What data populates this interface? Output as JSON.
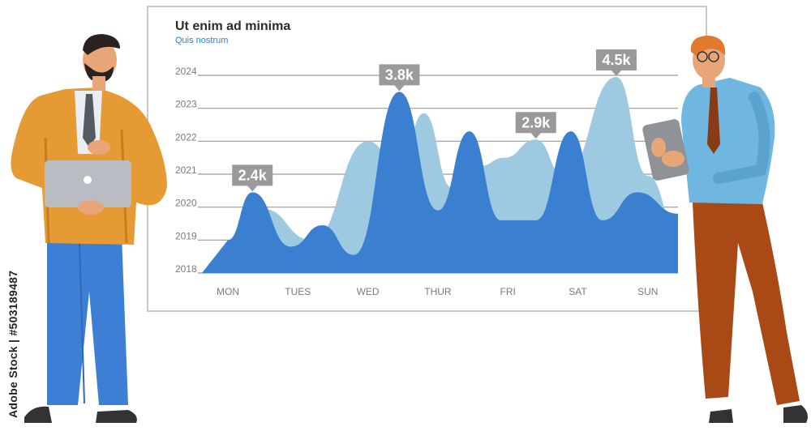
{
  "chart_data": {
    "type": "area",
    "title": "Ut enim ad minima",
    "subtitle": "Quis nostrum",
    "x": [
      "MON",
      "TUES",
      "WED",
      "THUR",
      "FRI",
      "SAT",
      "SUN"
    ],
    "y_ticks": [
      "2018",
      "2019",
      "2020",
      "2021",
      "2022",
      "2023",
      "2024"
    ],
    "ylim": [
      2018,
      2024
    ],
    "grid": true,
    "series": [
      {
        "color": "#9ecae1",
        "points": [
          [
            0.0,
            2018.9
          ],
          [
            0.5,
            2019.95
          ],
          [
            1.2,
            2019.0
          ],
          [
            2.0,
            2022.0
          ],
          [
            2.45,
            2021.2
          ],
          [
            2.8,
            2022.85
          ],
          [
            3.2,
            2020.6
          ],
          [
            3.6,
            2021.25
          ],
          [
            3.95,
            2021.5
          ],
          [
            4.4,
            2022.05
          ],
          [
            4.8,
            2020.95
          ],
          [
            5.55,
            2023.95
          ],
          [
            6.0,
            2020.95
          ],
          [
            6.5,
            2019.3
          ]
        ]
      },
      {
        "color": "#3a7fd0",
        "points": [
          [
            0.0,
            2019.0
          ],
          [
            0.35,
            2020.45
          ],
          [
            0.9,
            2018.8
          ],
          [
            1.35,
            2019.45
          ],
          [
            1.8,
            2018.55
          ],
          [
            2.45,
            2023.5
          ],
          [
            3.0,
            2019.9
          ],
          [
            3.45,
            2022.3
          ],
          [
            3.9,
            2019.6
          ],
          [
            4.4,
            2019.6
          ],
          [
            4.9,
            2022.3
          ],
          [
            5.35,
            2019.6
          ],
          [
            5.85,
            2020.45
          ],
          [
            6.5,
            2019.8
          ]
        ]
      }
    ],
    "annotations": [
      {
        "x": 0.35,
        "y": 2020.45,
        "label": "2.4k"
      },
      {
        "x": 2.45,
        "y": 2023.5,
        "label": "3.8k"
      },
      {
        "x": 4.4,
        "y": 2022.05,
        "label": "2.9k"
      },
      {
        "x": 5.55,
        "y": 2023.95,
        "label": "4.5k"
      }
    ]
  },
  "watermark": "Adobe Stock | #503189487",
  "colors": {
    "grid": "#9a9a9a",
    "axis_text": "#7a7a7a",
    "bubble": "#9a9a9a",
    "area_light": "#9ecae1",
    "area_dark": "#3a7fd0"
  }
}
